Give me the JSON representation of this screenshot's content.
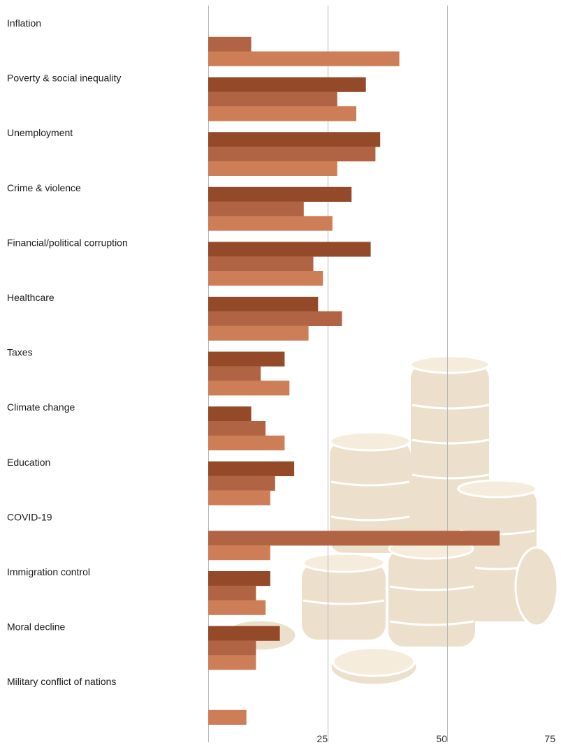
{
  "chart_data": {
    "type": "bar",
    "orientation": "horizontal",
    "title": "",
    "xlabel": "",
    "ylabel": "",
    "xlim": [
      0,
      75
    ],
    "x_ticks": [
      25,
      50,
      75
    ],
    "grid": true,
    "categories": [
      "Inflation",
      "Poverty & social inequality",
      "Unemployment",
      "Crime & violence",
      "Financial/political corruption",
      "Healthcare",
      "Taxes",
      "Climate change",
      "Education",
      "COVID-19",
      "Immigration control",
      "Moral decline",
      "Military conflict of nations"
    ],
    "series": [
      {
        "color": "#944a29",
        "values": [
          null,
          33,
          36,
          30,
          34,
          23,
          16,
          9,
          18,
          null,
          13,
          15,
          null
        ]
      },
      {
        "color": "#b06443",
        "values": [
          9,
          27,
          35,
          20,
          22,
          28,
          11,
          12,
          14,
          61,
          10,
          10,
          null
        ]
      },
      {
        "color": "#cd7e56",
        "values": [
          40,
          31,
          27,
          26,
          24,
          21,
          17,
          16,
          13,
          13,
          12,
          10,
          8
        ]
      }
    ]
  },
  "decoration": {
    "icon": "coin-stacks-illustration"
  }
}
